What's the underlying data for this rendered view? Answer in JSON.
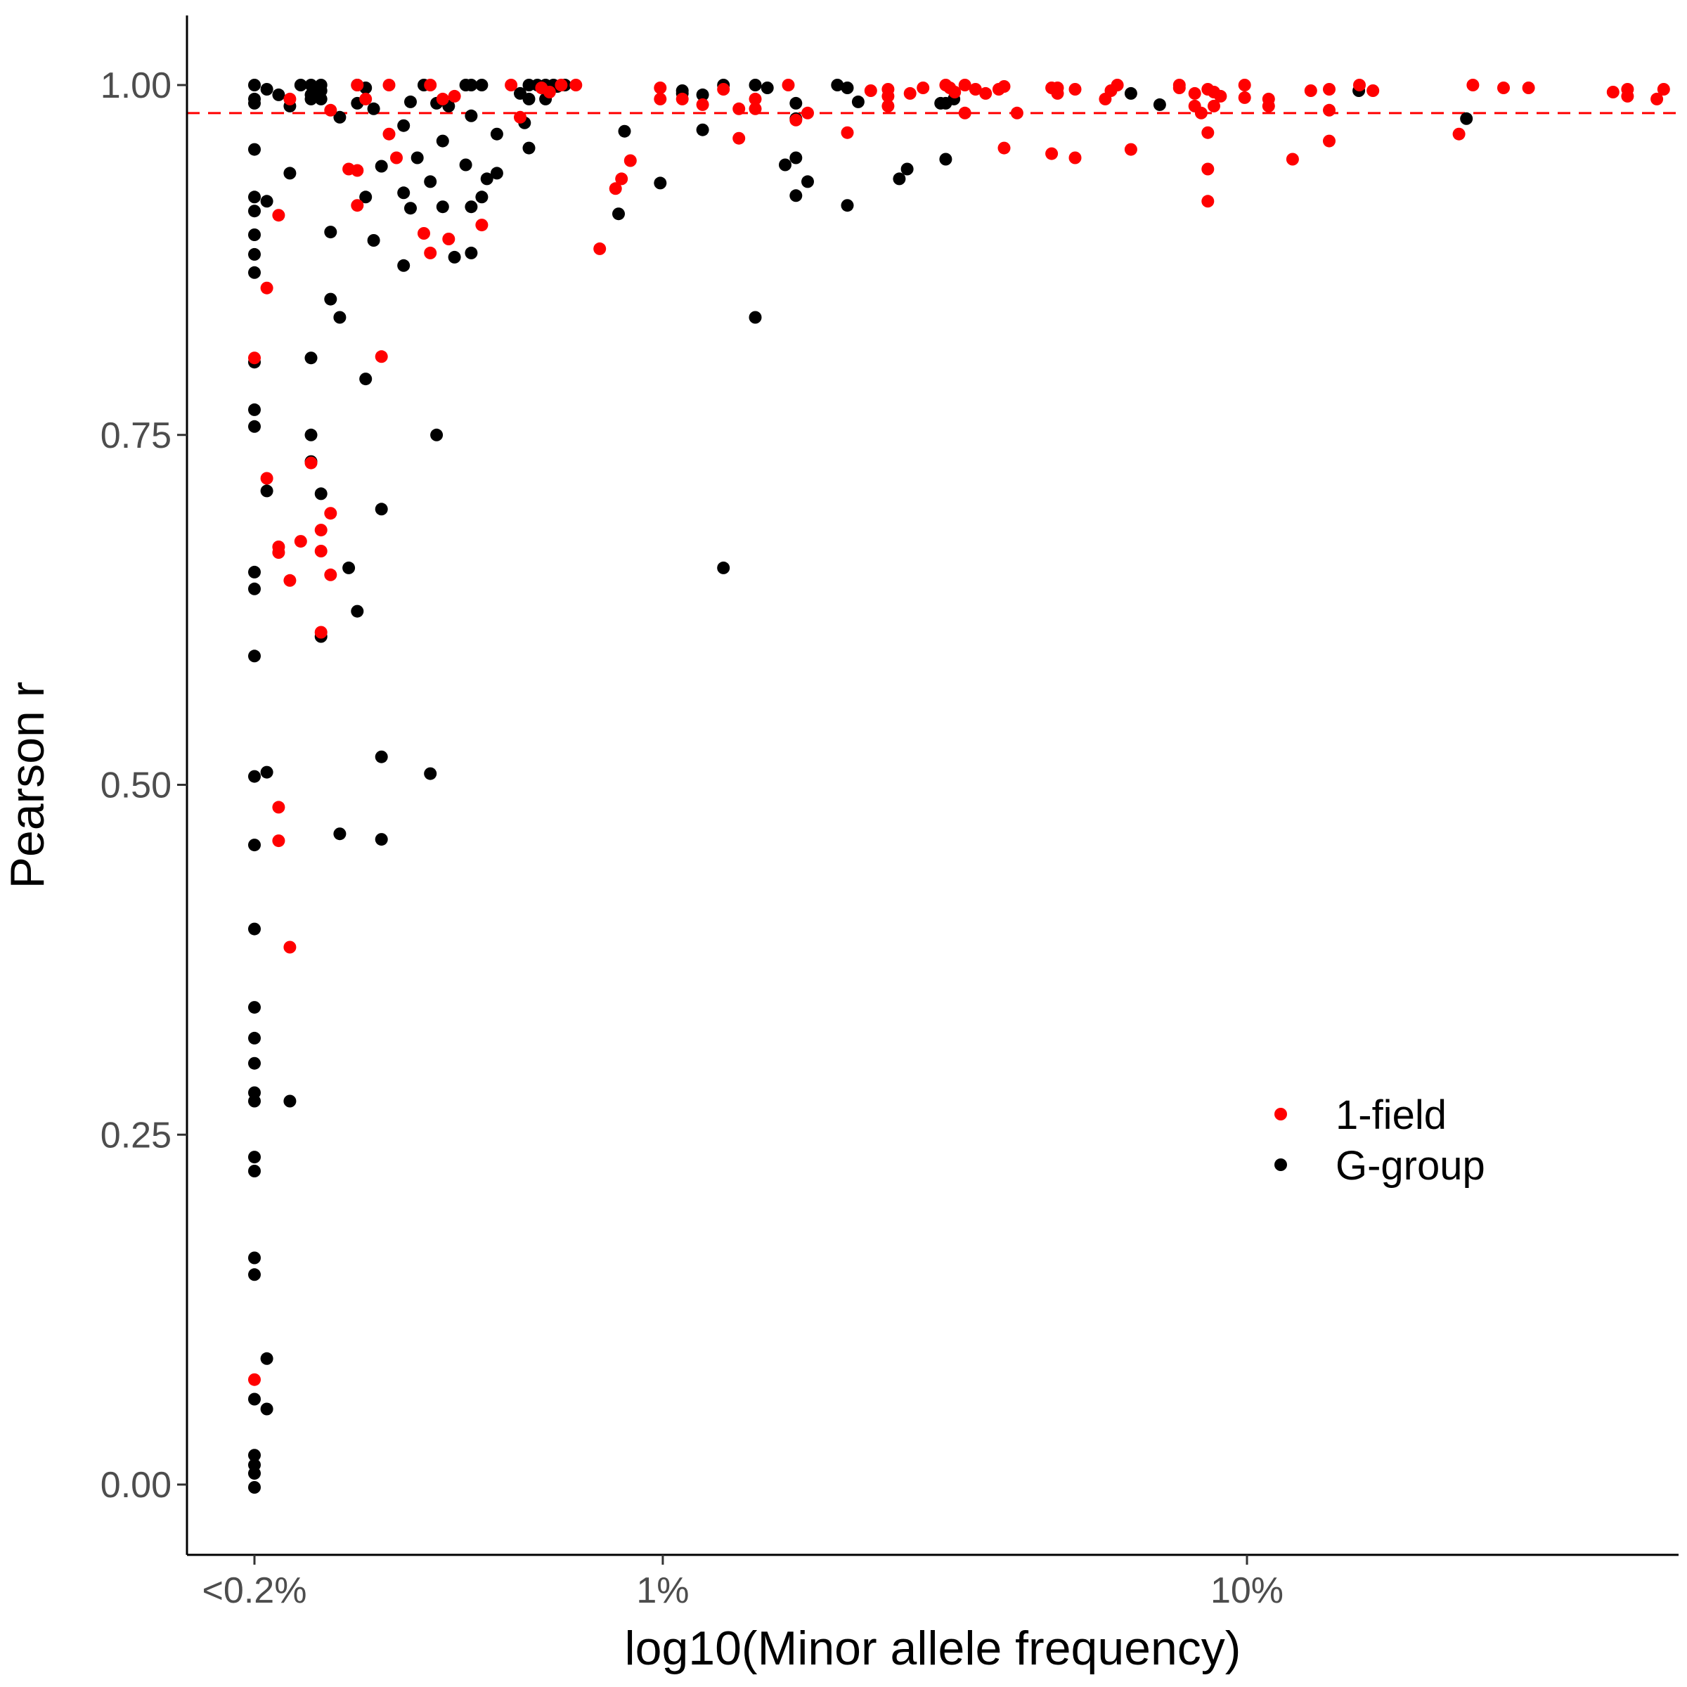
{
  "chart_data": {
    "type": "scatter",
    "title": "",
    "xlabel": "log10(Minor allele frequency)",
    "ylabel": "Pearson r",
    "x_scale": "log10",
    "xlim": [
      0.0017,
      0.53
    ],
    "ylim": [
      -0.05,
      1.05
    ],
    "x_ticks": [
      {
        "value": 0.002,
        "label": "<0.2%"
      },
      {
        "value": 0.01,
        "label": "1%"
      },
      {
        "value": 0.1,
        "label": "10%"
      }
    ],
    "y_ticks": [
      {
        "value": 0.0,
        "label": "0.00"
      },
      {
        "value": 0.25,
        "label": "0.25"
      },
      {
        "value": 0.5,
        "label": "0.50"
      },
      {
        "value": 0.75,
        "label": "0.75"
      },
      {
        "value": 1.0,
        "label": "1.00"
      }
    ],
    "grid": false,
    "reference_line": {
      "y": 0.98,
      "color": "#FF0000",
      "style": "dashed"
    },
    "legend": {
      "position": "right, lower-middle"
    },
    "series": [
      {
        "name": "G-group",
        "color": "#000000",
        "points": [
          [
            0.002,
            1.0
          ],
          [
            0.002,
            0.99
          ],
          [
            0.002,
            0.987
          ],
          [
            0.002,
            0.954
          ],
          [
            0.002,
            0.92
          ],
          [
            0.002,
            0.91
          ],
          [
            0.002,
            0.893
          ],
          [
            0.002,
            0.879
          ],
          [
            0.002,
            0.866
          ],
          [
            0.002,
            0.802
          ],
          [
            0.002,
            0.768
          ],
          [
            0.002,
            0.756
          ],
          [
            0.002,
            0.652
          ],
          [
            0.002,
            0.64
          ],
          [
            0.002,
            0.592
          ],
          [
            0.002,
            0.506
          ],
          [
            0.002,
            0.457
          ],
          [
            0.002,
            0.397
          ],
          [
            0.002,
            0.341
          ],
          [
            0.002,
            0.319
          ],
          [
            0.002,
            0.301
          ],
          [
            0.002,
            0.28
          ],
          [
            0.002,
            0.274
          ],
          [
            0.002,
            0.234
          ],
          [
            0.002,
            0.224
          ],
          [
            0.002,
            0.162
          ],
          [
            0.002,
            0.15
          ],
          [
            0.002,
            0.061
          ],
          [
            0.002,
            0.021
          ],
          [
            0.002,
            0.014
          ],
          [
            0.002,
            0.008
          ],
          [
            0.002,
            -0.002
          ],
          [
            0.0021,
            0.997
          ],
          [
            0.0021,
            0.917
          ],
          [
            0.0021,
            0.71
          ],
          [
            0.0021,
            0.509
          ],
          [
            0.0021,
            0.09
          ],
          [
            0.0021,
            0.054
          ],
          [
            0.0022,
            0.993
          ],
          [
            0.0023,
            0.985
          ],
          [
            0.0023,
            0.937
          ],
          [
            0.0023,
            0.274
          ],
          [
            0.0024,
            1.0
          ],
          [
            0.0025,
            0.993
          ],
          [
            0.0025,
            1.0
          ],
          [
            0.0025,
            0.99
          ],
          [
            0.0025,
            0.805
          ],
          [
            0.0025,
            0.75
          ],
          [
            0.0025,
            0.731
          ],
          [
            0.0026,
            1.0
          ],
          [
            0.0026,
            0.996
          ],
          [
            0.0026,
            0.99
          ],
          [
            0.0026,
            0.708
          ],
          [
            0.0026,
            0.606
          ],
          [
            0.0027,
            0.895
          ],
          [
            0.0027,
            0.847
          ],
          [
            0.0028,
            0.977
          ],
          [
            0.0028,
            0.834
          ],
          [
            0.0028,
            0.465
          ],
          [
            0.0029,
            0.655
          ],
          [
            0.003,
            1.0
          ],
          [
            0.003,
            0.987
          ],
          [
            0.003,
            0.624
          ],
          [
            0.0031,
            0.998
          ],
          [
            0.0031,
            0.92
          ],
          [
            0.0031,
            0.79
          ],
          [
            0.0032,
            0.983
          ],
          [
            0.0032,
            0.889
          ],
          [
            0.0033,
            0.942
          ],
          [
            0.0033,
            0.697
          ],
          [
            0.0033,
            0.52
          ],
          [
            0.0033,
            0.461
          ],
          [
            0.0036,
            0.971
          ],
          [
            0.0036,
            0.923
          ],
          [
            0.0036,
            0.871
          ],
          [
            0.0037,
            0.912
          ],
          [
            0.0037,
            0.988
          ],
          [
            0.0038,
            0.948
          ],
          [
            0.0039,
            1.0
          ],
          [
            0.004,
            0.931
          ],
          [
            0.004,
            0.508
          ],
          [
            0.0041,
            0.987
          ],
          [
            0.0041,
            0.75
          ],
          [
            0.0042,
            0.913
          ],
          [
            0.0042,
            0.96
          ],
          [
            0.0043,
            0.985
          ],
          [
            0.0044,
            0.877
          ],
          [
            0.0046,
            1.0
          ],
          [
            0.0046,
            0.943
          ],
          [
            0.0047,
            1.0
          ],
          [
            0.0047,
            0.978
          ],
          [
            0.0047,
            0.913
          ],
          [
            0.0047,
            0.88
          ],
          [
            0.0049,
            1.0
          ],
          [
            0.0049,
            0.92
          ],
          [
            0.005,
            0.933
          ],
          [
            0.0052,
            0.965
          ],
          [
            0.0052,
            0.937
          ],
          [
            0.0057,
            0.994
          ],
          [
            0.0058,
            0.973
          ],
          [
            0.0059,
            0.99
          ],
          [
            0.0059,
            0.955
          ],
          [
            0.0059,
            1.0
          ],
          [
            0.0061,
            1.0
          ],
          [
            0.0063,
            1.0
          ],
          [
            0.0063,
            0.99
          ],
          [
            0.0065,
            1.0
          ],
          [
            0.0066,
            0.999
          ],
          [
            0.0068,
            1.0
          ],
          [
            0.0084,
            0.908
          ],
          [
            0.0086,
            0.967
          ],
          [
            0.0099,
            0.93
          ],
          [
            0.0108,
            0.996
          ],
          [
            0.0108,
            0.994
          ],
          [
            0.0117,
            0.968
          ],
          [
            0.0117,
            0.993
          ],
          [
            0.0127,
            1.0
          ],
          [
            0.0127,
            0.655
          ],
          [
            0.0144,
            1.0
          ],
          [
            0.0144,
            0.834
          ],
          [
            0.0151,
            0.998
          ],
          [
            0.0162,
            0.943
          ],
          [
            0.0169,
            0.987
          ],
          [
            0.0169,
            0.976
          ],
          [
            0.0169,
            0.948
          ],
          [
            0.0169,
            0.921
          ],
          [
            0.0177,
            0.931
          ],
          [
            0.0199,
            1.0
          ],
          [
            0.0207,
            0.998
          ],
          [
            0.0207,
            0.914
          ],
          [
            0.0216,
            0.988
          ],
          [
            0.0254,
            0.933
          ],
          [
            0.0262,
            0.94
          ],
          [
            0.0299,
            0.987
          ],
          [
            0.0305,
            0.987
          ],
          [
            0.0305,
            0.947
          ],
          [
            0.0315,
            0.99
          ],
          [
            0.0633,
            0.994
          ],
          [
            0.0709,
            0.986
          ],
          [
            0.1554,
            0.996
          ],
          [
            0.2375,
            0.976
          ]
        ]
      },
      {
        "name": "1-field",
        "color": "#FF0000",
        "points": [
          [
            0.002,
            0.805
          ],
          [
            0.002,
            0.075
          ],
          [
            0.0021,
            0.855
          ],
          [
            0.0021,
            0.719
          ],
          [
            0.0022,
            0.907
          ],
          [
            0.0022,
            0.67
          ],
          [
            0.0022,
            0.666
          ],
          [
            0.0022,
            0.484
          ],
          [
            0.0022,
            0.46
          ],
          [
            0.0023,
            0.99
          ],
          [
            0.0023,
            0.646
          ],
          [
            0.0023,
            0.384
          ],
          [
            0.0024,
            0.674
          ],
          [
            0.0025,
            0.73
          ],
          [
            0.0026,
            0.609
          ],
          [
            0.0026,
            0.682
          ],
          [
            0.0026,
            0.667
          ],
          [
            0.0027,
            0.982
          ],
          [
            0.0027,
            0.694
          ],
          [
            0.0027,
            0.65
          ],
          [
            0.0029,
            0.94
          ],
          [
            0.003,
            1.0
          ],
          [
            0.003,
            0.939
          ],
          [
            0.003,
            0.914
          ],
          [
            0.0031,
            0.99
          ],
          [
            0.0033,
            0.806
          ],
          [
            0.0034,
            1.0
          ],
          [
            0.0034,
            0.965
          ],
          [
            0.0035,
            0.948
          ],
          [
            0.0039,
            0.894
          ],
          [
            0.004,
            1.0
          ],
          [
            0.004,
            0.88
          ],
          [
            0.0042,
            0.99
          ],
          [
            0.0043,
            0.89
          ],
          [
            0.0044,
            0.992
          ],
          [
            0.0049,
            0.9
          ],
          [
            0.0055,
            1.0
          ],
          [
            0.0057,
            0.977
          ],
          [
            0.0062,
            0.998
          ],
          [
            0.0064,
            0.995
          ],
          [
            0.0067,
            1.0
          ],
          [
            0.0071,
            1.0
          ],
          [
            0.0078,
            0.883
          ],
          [
            0.0083,
            0.926
          ],
          [
            0.0085,
            0.933
          ],
          [
            0.0088,
            0.946
          ],
          [
            0.0099,
            0.998
          ],
          [
            0.0099,
            0.99
          ],
          [
            0.0108,
            0.99
          ],
          [
            0.0117,
            0.986
          ],
          [
            0.0127,
            0.997
          ],
          [
            0.0135,
            0.983
          ],
          [
            0.0135,
            0.962
          ],
          [
            0.0144,
            0.99
          ],
          [
            0.0144,
            0.983
          ],
          [
            0.0164,
            1.0
          ],
          [
            0.0169,
            0.975
          ],
          [
            0.0177,
            0.98
          ],
          [
            0.0207,
            0.966
          ],
          [
            0.0227,
            0.996
          ],
          [
            0.0243,
            0.997
          ],
          [
            0.0243,
            0.992
          ],
          [
            0.0243,
            0.985
          ],
          [
            0.0265,
            0.994
          ],
          [
            0.0279,
            0.998
          ],
          [
            0.0305,
            1.0
          ],
          [
            0.031,
            0.998
          ],
          [
            0.0316,
            0.995
          ],
          [
            0.0329,
            1.0
          ],
          [
            0.0329,
            0.98
          ],
          [
            0.0343,
            0.997
          ],
          [
            0.0357,
            0.994
          ],
          [
            0.0376,
            0.997
          ],
          [
            0.0384,
            0.999
          ],
          [
            0.0384,
            0.955
          ],
          [
            0.0404,
            0.98
          ],
          [
            0.0463,
            0.998
          ],
          [
            0.0463,
            0.951
          ],
          [
            0.0474,
            0.994
          ],
          [
            0.0474,
            0.998
          ],
          [
            0.0508,
            0.997
          ],
          [
            0.0508,
            0.948
          ],
          [
            0.0572,
            0.99
          ],
          [
            0.0585,
            0.996
          ],
          [
            0.06,
            1.0
          ],
          [
            0.0633,
            0.954
          ],
          [
            0.0766,
            0.998
          ],
          [
            0.0766,
            1.0
          ],
          [
            0.0814,
            0.994
          ],
          [
            0.0814,
            0.985
          ],
          [
            0.0835,
            0.98
          ],
          [
            0.0857,
            0.997
          ],
          [
            0.0857,
            0.966
          ],
          [
            0.0857,
            0.94
          ],
          [
            0.0857,
            0.917
          ],
          [
            0.0878,
            0.985
          ],
          [
            0.0878,
            0.995
          ],
          [
            0.0901,
            0.992
          ],
          [
            0.0991,
            1.0
          ],
          [
            0.0991,
            0.991
          ],
          [
            0.1089,
            0.99
          ],
          [
            0.1089,
            0.985
          ],
          [
            0.1197,
            0.947
          ],
          [
            0.1286,
            0.996
          ],
          [
            0.1383,
            0.997
          ],
          [
            0.1383,
            0.982
          ],
          [
            0.1383,
            0.96
          ],
          [
            0.1558,
            1.0
          ],
          [
            0.1643,
            0.996
          ],
          [
            0.2306,
            0.965
          ],
          [
            0.2436,
            1.0
          ],
          [
            0.2749,
            0.998
          ],
          [
            0.3034,
            0.998
          ],
          [
            0.4233,
            0.995
          ],
          [
            0.4482,
            0.997
          ],
          [
            0.4482,
            0.992
          ],
          [
            0.503,
            0.99
          ],
          [
            0.5168,
            0.997
          ]
        ]
      }
    ]
  }
}
